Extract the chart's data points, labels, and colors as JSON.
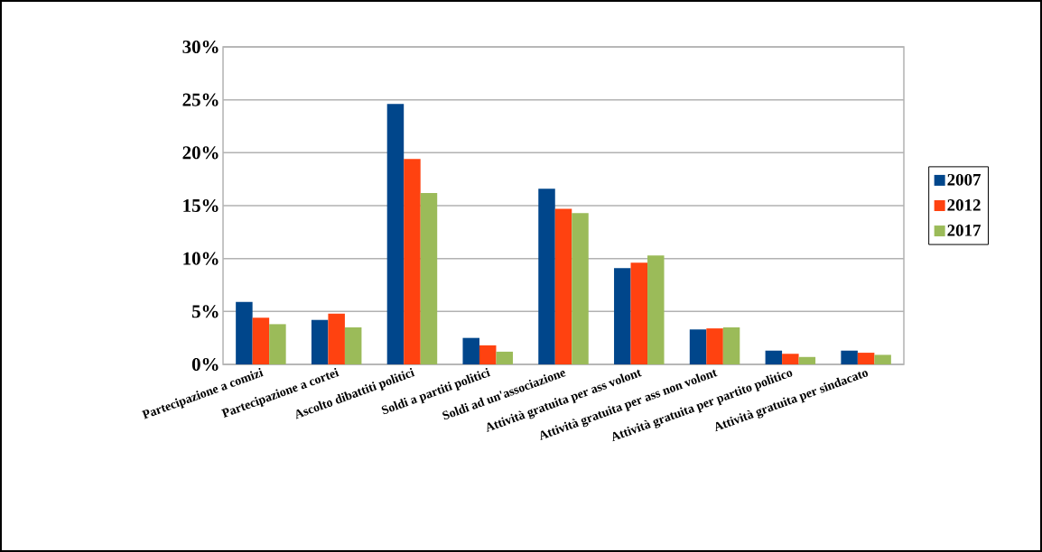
{
  "chart_data": {
    "type": "bar",
    "categories": [
      "Partecipazione a comizi",
      "Partecipazione a cortei",
      "Ascolto dibattiti politici",
      "Soldi a partiti politici",
      "Soldi ad un'associazione",
      "Attività gratuita per ass volont",
      "Attività gratuita per ass non volont",
      "Attività gratuita per partito politico",
      "Attività gratuita per sindacato"
    ],
    "series": [
      {
        "name": "2007",
        "color": "#00468b",
        "values": [
          5.9,
          4.2,
          24.6,
          2.5,
          16.6,
          9.1,
          3.3,
          1.3,
          1.3
        ]
      },
      {
        "name": "2012",
        "color": "#ff4210",
        "values": [
          4.4,
          4.8,
          19.4,
          1.8,
          14.7,
          9.6,
          3.4,
          1.0,
          1.1
        ]
      },
      {
        "name": "2017",
        "color": "#9bbb59",
        "values": [
          3.8,
          3.5,
          16.2,
          1.2,
          14.3,
          10.3,
          3.5,
          0.7,
          0.9
        ]
      }
    ],
    "ylim": [
      0,
      30
    ],
    "yticks": [
      {
        "value": 0,
        "label": "0%"
      },
      {
        "value": 5,
        "label": "5%"
      },
      {
        "value": 10,
        "label": "10%"
      },
      {
        "value": 15,
        "label": "15%"
      },
      {
        "value": 20,
        "label": "20%"
      },
      {
        "value": 25,
        "label": "25%"
      },
      {
        "value": 30,
        "label": "30%"
      }
    ],
    "grid": "y",
    "legend": "right"
  }
}
